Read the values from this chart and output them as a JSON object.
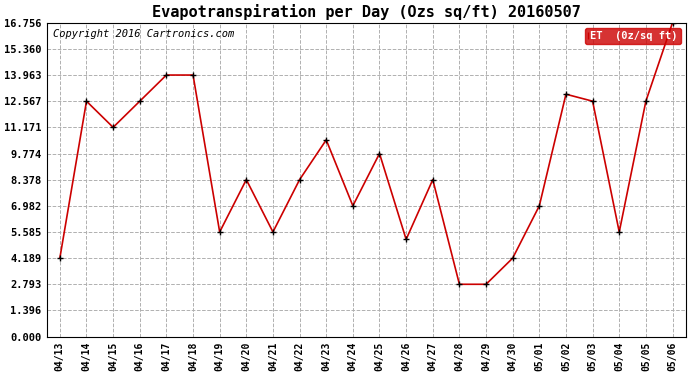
{
  "title": "Evapotranspiration per Day (Ozs sq/ft) 20160507",
  "copyright": "Copyright 2016 Cartronics.com",
  "legend_label": "ET  (0z/sq ft)",
  "dates": [
    "04/13",
    "04/14",
    "04/15",
    "04/16",
    "04/17",
    "04/18",
    "04/19",
    "04/20",
    "04/21",
    "04/22",
    "04/23",
    "04/24",
    "04/25",
    "04/26",
    "04/27",
    "04/28",
    "04/29",
    "04/30",
    "05/01",
    "05/02",
    "05/03",
    "05/04",
    "05/05",
    "05/06"
  ],
  "values": [
    4.189,
    12.567,
    11.171,
    12.567,
    13.963,
    13.963,
    5.585,
    8.378,
    5.585,
    8.378,
    10.5,
    6.982,
    9.774,
    5.189,
    8.378,
    2.793,
    2.793,
    4.189,
    6.982,
    12.94,
    12.567,
    5.585,
    12.567,
    16.756
  ],
  "yticks": [
    0.0,
    1.396,
    2.793,
    4.189,
    5.585,
    6.982,
    8.378,
    9.774,
    11.171,
    12.567,
    13.963,
    15.36,
    16.756
  ],
  "ymin": 0.0,
  "ymax": 16.756,
  "line_color": "#cc0000",
  "marker_color": "#000000",
  "bg_color": "#ffffff",
  "grid_color": "#b0b0b0",
  "title_fontsize": 11,
  "copyright_fontsize": 7.5,
  "tick_fontsize": 7,
  "ytick_fontsize": 7.5,
  "legend_bg": "#cc0000",
  "legend_fg": "#ffffff"
}
